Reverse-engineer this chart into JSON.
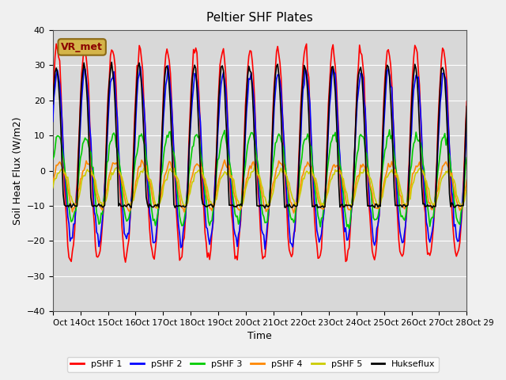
{
  "title": "Peltier SHF Plates",
  "xlabel": "Time",
  "ylabel": "Soil Heat Flux (W/m2)",
  "ylim": [
    -40,
    40
  ],
  "xlim": [
    0,
    360
  ],
  "bg_color": "#d8d8d8",
  "annotation_text": "VR_met",
  "annotation_bg": "#d4b44a",
  "annotation_border": "#8B6914",
  "legend_entries": [
    "pSHF 1",
    "pSHF 2",
    "pSHF 3",
    "pSHF 4",
    "pSHF 5",
    "Hukseflux"
  ],
  "line_colors": [
    "#ff0000",
    "#0000ff",
    "#00cc00",
    "#ff8800",
    "#cccc00",
    "#000000"
  ],
  "xtick_labels": [
    "Oct 14",
    "Oct 15",
    "Oct 16",
    "Oct 17",
    "Oct 18",
    "Oct 19",
    "Oct 20",
    "Oct 21",
    "Oct 22",
    "Oct 23",
    "Oct 24",
    "Oct 25",
    "Oct 26",
    "Oct 27",
    "Oct 28",
    "Oct 29"
  ],
  "grid_color": "#ffffff",
  "line_width": 1.2
}
